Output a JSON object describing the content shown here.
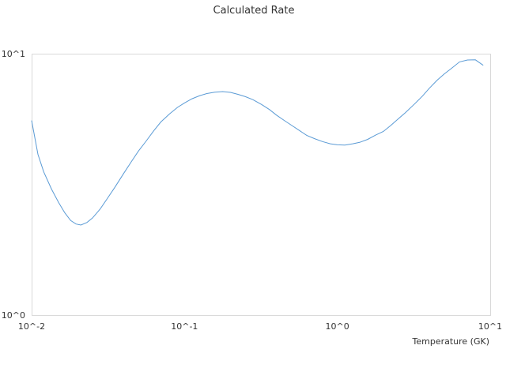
{
  "chart_data": {
    "type": "line",
    "title": "Calculated Rate",
    "xlabel": "Temperature (GK)",
    "ylabel": "",
    "x_scale": "log",
    "y_scale": "log",
    "xlim": [
      0.01,
      10
    ],
    "ylim": [
      1,
      10
    ],
    "x_ticks": [
      {
        "value": 0.01,
        "label": "10^-2"
      },
      {
        "value": 0.1,
        "label": "10^-1"
      },
      {
        "value": 1,
        "label": "10^0"
      },
      {
        "value": 10,
        "label": "10^1"
      }
    ],
    "y_ticks": [
      {
        "value": 1,
        "label": "10^0"
      },
      {
        "value": 10,
        "label": "10^1"
      }
    ],
    "grid": false,
    "legend": "none",
    "series": [
      {
        "color": "#5b9bd5",
        "x": [
          0.01,
          0.011,
          0.012,
          0.0135,
          0.015,
          0.0165,
          0.018,
          0.0195,
          0.021,
          0.023,
          0.025,
          0.028,
          0.031,
          0.035,
          0.04,
          0.045,
          0.05,
          0.056,
          0.063,
          0.07,
          0.08,
          0.09,
          0.1,
          0.112,
          0.126,
          0.14,
          0.158,
          0.178,
          0.2,
          0.224,
          0.25,
          0.28,
          0.32,
          0.36,
          0.4,
          0.45,
          0.5,
          0.56,
          0.63,
          0.71,
          0.8,
          0.9,
          1.0,
          1.12,
          1.26,
          1.4,
          1.58,
          1.78,
          2.0,
          2.24,
          2.5,
          2.8,
          3.2,
          3.6,
          4.0,
          4.5,
          5.0,
          5.6,
          6.3,
          7.1,
          8.0,
          9.0
        ],
        "y": [
          5.55,
          4.12,
          3.53,
          3.03,
          2.7,
          2.46,
          2.3,
          2.23,
          2.21,
          2.26,
          2.35,
          2.54,
          2.77,
          3.08,
          3.48,
          3.87,
          4.24,
          4.62,
          5.07,
          5.48,
          5.89,
          6.23,
          6.48,
          6.72,
          6.91,
          7.04,
          7.12,
          7.16,
          7.11,
          6.99,
          6.85,
          6.67,
          6.39,
          6.11,
          5.82,
          5.55,
          5.33,
          5.1,
          4.87,
          4.73,
          4.61,
          4.52,
          4.48,
          4.47,
          4.52,
          4.58,
          4.7,
          4.88,
          5.04,
          5.32,
          5.63,
          5.96,
          6.42,
          6.88,
          7.38,
          7.92,
          8.36,
          8.8,
          9.3,
          9.46,
          9.47,
          9.03
        ]
      }
    ]
  }
}
